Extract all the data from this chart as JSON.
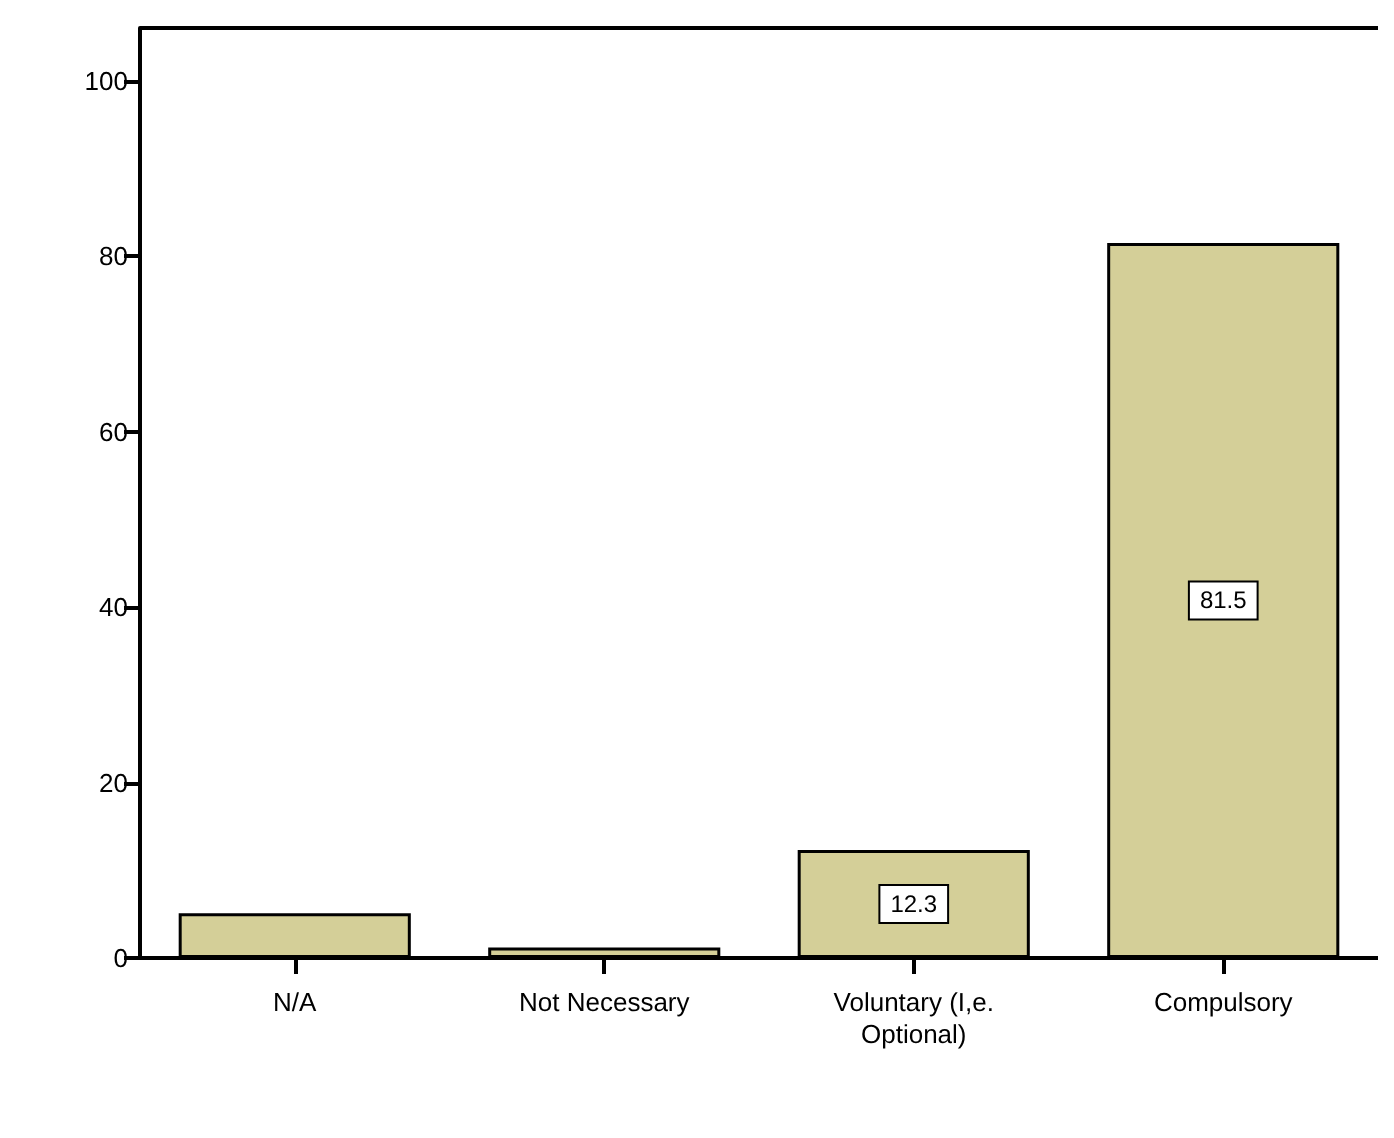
{
  "chart_data": {
    "type": "bar",
    "categories": [
      "N/A",
      "Not Necessary",
      "Voluntary (I,e.\nOptional)",
      "Compulsory"
    ],
    "values": [
      5.1,
      1.2,
      12.3,
      81.5
    ],
    "value_labels": [
      null,
      null,
      "12.3",
      "81.5"
    ],
    "color": "#d4cf98",
    "ylim": [
      0,
      106
    ],
    "yticks": [
      0,
      20,
      40,
      60,
      80,
      100
    ],
    "grid": false
  }
}
